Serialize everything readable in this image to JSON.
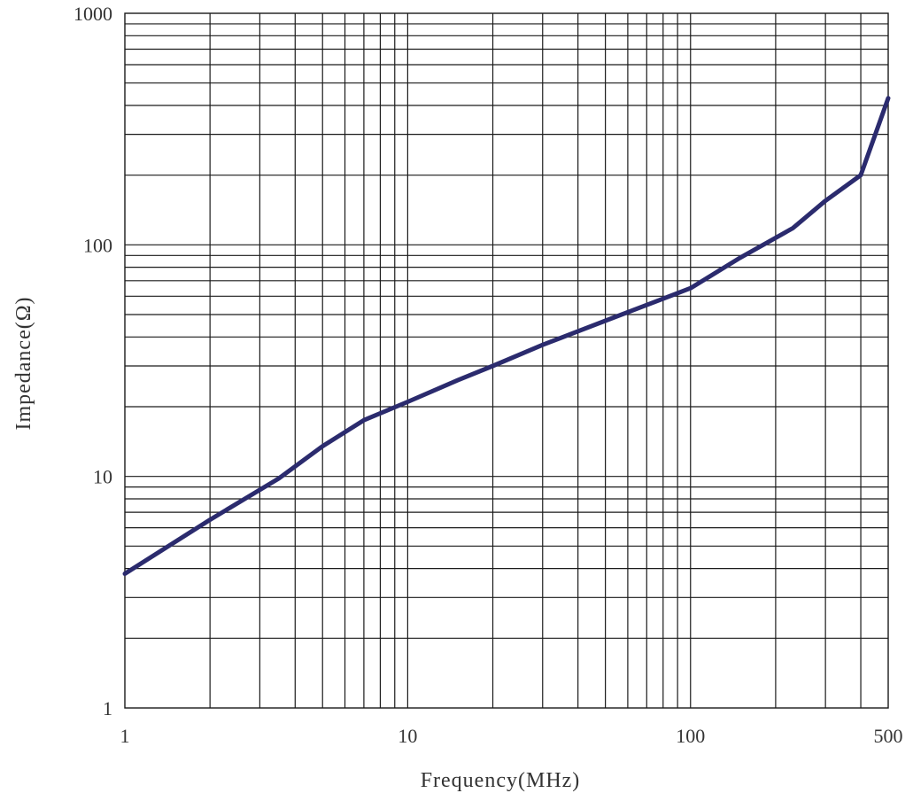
{
  "chart_data": {
    "type": "line",
    "xlabel": "Frequency(MHz)",
    "ylabel": "Impedance(Ω)",
    "x_scale": "log",
    "y_scale": "log",
    "xlim": [
      1,
      500
    ],
    "ylim": [
      1,
      1000
    ],
    "x_ticks": [
      {
        "value": 1,
        "label": "1"
      },
      {
        "value": 10,
        "label": "10"
      },
      {
        "value": 100,
        "label": "100"
      },
      {
        "value": 500,
        "label": "500"
      }
    ],
    "y_ticks": [
      {
        "value": 1,
        "label": "1"
      },
      {
        "value": 10,
        "label": "10"
      },
      {
        "value": 100,
        "label": "100"
      },
      {
        "value": 1000,
        "label": "1000"
      }
    ],
    "grid": true,
    "series": [
      {
        "color": "#2b2b6e",
        "x": [
          1,
          2,
          3.5,
          5,
          7,
          10,
          15,
          20,
          30,
          50,
          70,
          100,
          150,
          230,
          300,
          400,
          500
        ],
        "y": [
          3.8,
          6.5,
          9.8,
          13.5,
          17.5,
          21,
          26,
          30,
          37,
          47,
          55,
          65,
          88,
          118,
          155,
          200,
          430
        ]
      }
    ]
  }
}
